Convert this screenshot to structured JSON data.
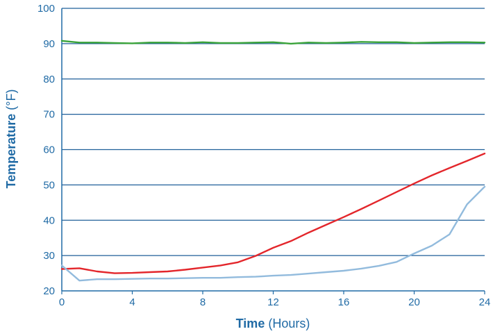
{
  "chart_data": {
    "type": "line",
    "xlabel": {
      "bold": "Time",
      "rest": " (Hours)"
    },
    "ylabel": {
      "bold": "Temperature",
      "rest": " (°F)"
    },
    "xlim": [
      0,
      24
    ],
    "ylim": [
      20,
      100
    ],
    "x_ticks": [
      0,
      4,
      8,
      12,
      16,
      20,
      24
    ],
    "y_ticks": [
      20,
      30,
      40,
      50,
      60,
      70,
      80,
      90,
      100
    ],
    "grid": "horizontal",
    "colors": {
      "axis": "#1f6aa5",
      "grid": "#1f5f99",
      "text": "#1f6aa5"
    },
    "series": [
      {
        "color": "#3aa33a",
        "x": [
          0,
          1,
          2,
          3,
          4,
          5,
          6,
          7,
          8,
          9,
          10,
          11,
          12,
          13,
          14,
          15,
          16,
          17,
          18,
          19,
          20,
          21,
          22,
          23,
          24
        ],
        "y": [
          90.8,
          90.3,
          90.3,
          90.2,
          90.1,
          90.3,
          90.3,
          90.2,
          90.4,
          90.2,
          90.2,
          90.3,
          90.4,
          90.0,
          90.3,
          90.2,
          90.3,
          90.5,
          90.4,
          90.4,
          90.2,
          90.3,
          90.4,
          90.4,
          90.3
        ]
      },
      {
        "color": "#e3262b",
        "x": [
          0,
          1,
          2,
          3,
          4,
          5,
          6,
          7,
          8,
          9,
          10,
          11,
          12,
          13,
          14,
          15,
          16,
          17,
          18,
          19,
          20,
          21,
          22,
          23,
          24
        ],
        "y": [
          26.2,
          26.4,
          25.5,
          25.0,
          25.1,
          25.3,
          25.5,
          26.0,
          26.6,
          27.2,
          28.1,
          29.9,
          32.2,
          34.1,
          36.5,
          38.7,
          40.9,
          43.2,
          45.6,
          48.0,
          50.4,
          52.7,
          54.8,
          56.8,
          58.9
        ]
      },
      {
        "color": "#92bbdd",
        "x": [
          0,
          1,
          2,
          3,
          4,
          5,
          6,
          7,
          8,
          9,
          10,
          11,
          12,
          13,
          14,
          15,
          16,
          17,
          18,
          19,
          20,
          21,
          22,
          23,
          24
        ],
        "y": [
          27.2,
          22.9,
          23.3,
          23.3,
          23.4,
          23.5,
          23.5,
          23.6,
          23.7,
          23.7,
          23.9,
          24.0,
          24.3,
          24.5,
          24.9,
          25.3,
          25.7,
          26.3,
          27.1,
          28.2,
          30.6,
          32.8,
          36.0,
          44.5,
          49.5
        ]
      }
    ]
  }
}
